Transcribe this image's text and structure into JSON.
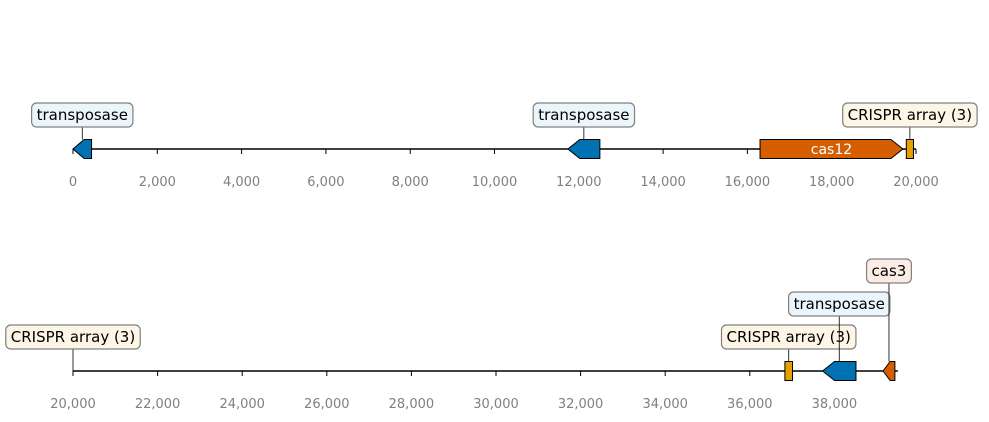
{
  "colors": {
    "transposase": "#0072b2",
    "cas": "#d55e00",
    "crispr": "#e69f00",
    "transposase_box_bg": "#eaf5fc",
    "cas_box_bg": "#fcece6",
    "crispr_box_bg": "#fdf5e6",
    "axis_text": "#808080"
  },
  "tracks": [
    {
      "id": "top",
      "range": [
        0,
        20000
      ],
      "ticks": [
        {
          "value": 0,
          "label": "0"
        },
        {
          "value": 2000,
          "label": "2,000"
        },
        {
          "value": 4000,
          "label": "4,000"
        },
        {
          "value": 6000,
          "label": "6,000"
        },
        {
          "value": 8000,
          "label": "8,000"
        },
        {
          "value": 10000,
          "label": "10,000"
        },
        {
          "value": 12000,
          "label": "12,000"
        },
        {
          "value": 14000,
          "label": "14,000"
        },
        {
          "value": 16000,
          "label": "16,000"
        },
        {
          "value": 18000,
          "label": "18,000"
        },
        {
          "value": 20000,
          "label": "20,000"
        }
      ],
      "features": [
        {
          "name": "transposase",
          "start": 0,
          "end": 440,
          "strand": -1,
          "kind": "transposase",
          "label": "transposase",
          "label_in_box": true,
          "level": 1
        },
        {
          "name": "transposase",
          "start": 11740,
          "end": 12500,
          "strand": -1,
          "kind": "transposase",
          "label": "transposase",
          "label_in_box": true,
          "level": 1
        },
        {
          "name": "cas12",
          "start": 16300,
          "end": 19690,
          "strand": 1,
          "kind": "cas",
          "label": "cas12",
          "label_in_box": false,
          "level": 1
        },
        {
          "name": "CRISPR array (3)",
          "start": 19770,
          "end": 19940,
          "strand": 0,
          "kind": "crispr",
          "label": "CRISPR array (3)",
          "label_in_box": true,
          "level": 1
        }
      ]
    },
    {
      "id": "bottom",
      "range": [
        20000,
        39500
      ],
      "ticks": [
        {
          "value": 20000,
          "label": "20,000"
        },
        {
          "value": 22000,
          "label": "22,000"
        },
        {
          "value": 24000,
          "label": "24,000"
        },
        {
          "value": 26000,
          "label": "26,000"
        },
        {
          "value": 28000,
          "label": "28,000"
        },
        {
          "value": 30000,
          "label": "30,000"
        },
        {
          "value": 32000,
          "label": "32,000"
        },
        {
          "value": 34000,
          "label": "34,000"
        },
        {
          "value": 36000,
          "label": "36,000"
        },
        {
          "value": 38000,
          "label": "38,000"
        }
      ],
      "features": [
        {
          "name": "CRISPR array (3)",
          "start": 20000,
          "end": 20000,
          "strand": 0,
          "kind": "crispr",
          "label": "CRISPR array (3)",
          "label_in_box": true,
          "level": 1,
          "marker_hidden": true
        },
        {
          "name": "CRISPR array (3)",
          "start": 36830,
          "end": 37010,
          "strand": 0,
          "kind": "crispr",
          "label": "CRISPR array (3)",
          "label_in_box": true,
          "level": 1
        },
        {
          "name": "transposase",
          "start": 37720,
          "end": 38510,
          "strand": -1,
          "kind": "transposase",
          "label": "transposase",
          "label_in_box": true,
          "level": 2
        },
        {
          "name": "cas3",
          "start": 39150,
          "end": 39430,
          "strand": -1,
          "kind": "cas",
          "label": "cas3",
          "label_in_box": true,
          "level": 3
        }
      ]
    }
  ]
}
